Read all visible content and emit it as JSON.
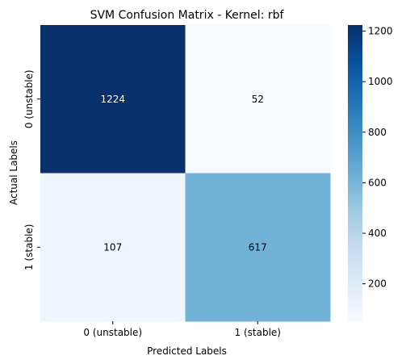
{
  "chart_data": {
    "type": "heatmap",
    "title": "SVM Confusion Matrix - Kernel: rbf",
    "xlabel": "Predicted Labels",
    "ylabel": "Actual Labels",
    "x_categories": [
      "0 (unstable)",
      "1 (stable)"
    ],
    "y_categories": [
      "0 (unstable)",
      "1 (stable)"
    ],
    "values": [
      [
        1224,
        52
      ],
      [
        107,
        617
      ]
    ],
    "colormap": "Blues",
    "colorbar": {
      "min": 52,
      "max": 1224,
      "ticks": [
        200,
        400,
        600,
        800,
        1000,
        1200
      ]
    },
    "colors": {
      "low": "#f7fbff",
      "high": "#08306b",
      "text_dark": "#000000",
      "text_light": "#ffffff"
    }
  }
}
